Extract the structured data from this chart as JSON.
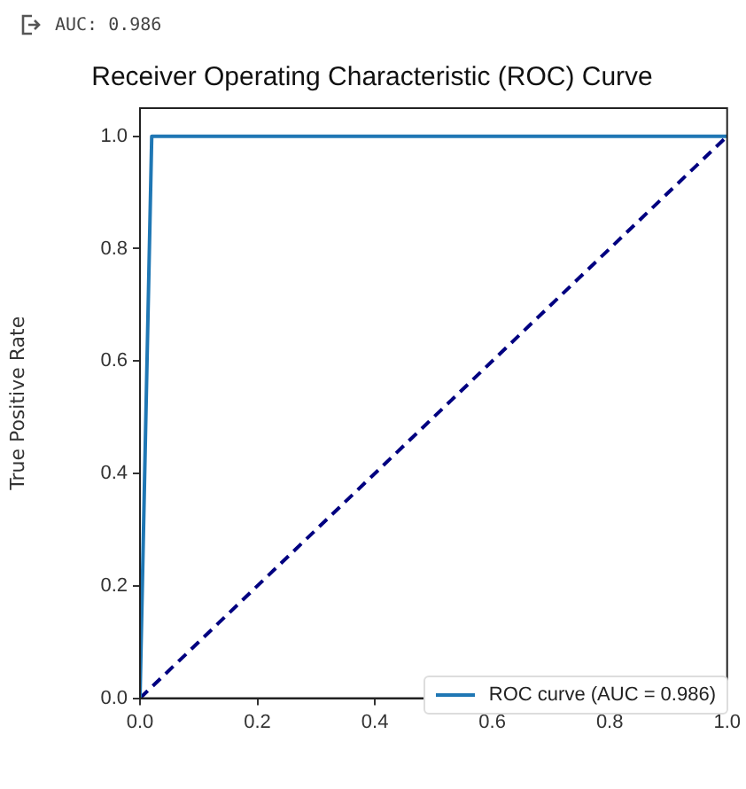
{
  "chart_data": {
    "type": "line",
    "title": "Receiver Operating Characteristic (ROC) Curve",
    "ylabel": "True Positive Rate",
    "annotations": [
      "AUC: 0.986"
    ],
    "xlim": [
      0,
      1
    ],
    "xticks": [
      {
        "value": 0,
        "label": "0.0"
      },
      0.2,
      0.4,
      0.6,
      0.8,
      {
        "value": 1,
        "label": "1.0"
      }
    ],
    "ylim": [
      0,
      1.05
    ],
    "yticks": [
      {
        "value": 0,
        "label": "0.0"
      },
      0.2,
      0.4,
      0.6,
      0.8,
      {
        "value": 1,
        "label": "1.0"
      }
    ],
    "grid": false,
    "legend": "bottom right",
    "marker": "none",
    "series": [
      {
        "name": "ROC curve (AUC = 0.986)",
        "color": "#1f77b4",
        "x": [
          0,
          0.02,
          1
        ],
        "values": [
          0,
          1,
          1
        ]
      },
      {
        "color": "#000080",
        "x": [
          0,
          1
        ],
        "values": [
          0,
          1
        ],
        "line_style": "dashed"
      }
    ]
  }
}
